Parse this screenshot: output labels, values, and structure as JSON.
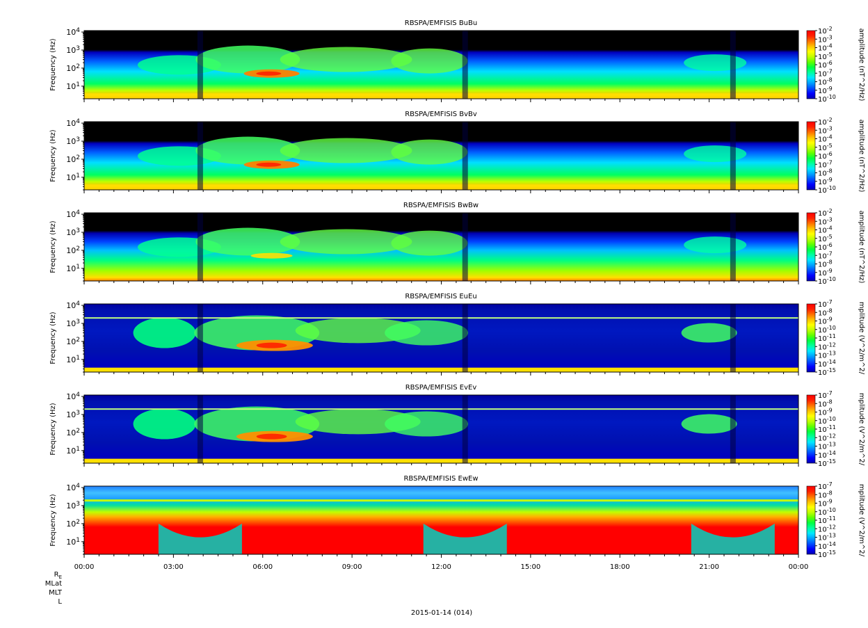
{
  "figure": {
    "date_label": "2015-01-14 (014)",
    "ephemeris_labels": [
      "R_E",
      "MLat",
      "MLT",
      "L"
    ],
    "x_ticks": [
      "00:00",
      "03:00",
      "06:00",
      "09:00",
      "12:00",
      "15:00",
      "18:00",
      "21:00",
      "00:00"
    ]
  },
  "colors": {
    "colorbar": [
      "#0000b0",
      "#0000ff",
      "#0050ff",
      "#00a0ff",
      "#00e8ff",
      "#00ffa0",
      "#00ff40",
      "#60ff00",
      "#c0ff00",
      "#ffff00",
      "#ffc000",
      "#ff7000",
      "#ff2000",
      "#ff0000"
    ],
    "background": "#000000"
  },
  "chart_data": [
    {
      "type": "heatmap",
      "title": "RBSPA/EMFISIS  BuBu",
      "ylabel": "Frequency (Hz)",
      "y_ticks": [
        "10^1",
        "10^2",
        "10^3",
        "10^4"
      ],
      "yscale": "log",
      "ylim": [
        2,
        12000
      ],
      "x_range": [
        "00:00",
        "00:00"
      ],
      "colorbar_label": "amplitude (nT^2/Hz)",
      "colorbar_ticks": [
        "10^-2",
        "10^-3",
        "10^-4",
        "10^-5",
        "10^-6",
        "10^-7",
        "10^-8",
        "10^-9",
        "10^-10"
      ],
      "profile": "B",
      "z_range_log10": [
        -10,
        -2
      ]
    },
    {
      "type": "heatmap",
      "title": "RBSPA/EMFISIS  BvBv",
      "ylabel": "Frequency (Hz)",
      "y_ticks": [
        "10^1",
        "10^2",
        "10^3",
        "10^4"
      ],
      "yscale": "log",
      "ylim": [
        2,
        12000
      ],
      "x_range": [
        "00:00",
        "00:00"
      ],
      "colorbar_label": "amplitude (nT^2/Hz)",
      "colorbar_ticks": [
        "10^-2",
        "10^-3",
        "10^-4",
        "10^-5",
        "10^-6",
        "10^-7",
        "10^-8",
        "10^-9",
        "10^-10"
      ],
      "profile": "B",
      "z_range_log10": [
        -10,
        -2
      ]
    },
    {
      "type": "heatmap",
      "title": "RBSPA/EMFISIS  BwBw",
      "ylabel": "Frequency (Hz)",
      "y_ticks": [
        "10^1",
        "10^2",
        "10^3",
        "10^4"
      ],
      "yscale": "log",
      "ylim": [
        2,
        12000
      ],
      "x_range": [
        "00:00",
        "00:00"
      ],
      "colorbar_label": "amplitude (nT^2/Hz)",
      "colorbar_ticks": [
        "10^-2",
        "10^-3",
        "10^-4",
        "10^-5",
        "10^-6",
        "10^-7",
        "10^-8",
        "10^-9",
        "10^-10"
      ],
      "profile": "Bw",
      "z_range_log10": [
        -10,
        -2
      ]
    },
    {
      "type": "heatmap",
      "title": "RBSPA/EMFISIS  EuEu",
      "ylabel": "Frequency (Hz)",
      "y_ticks": [
        "10^1",
        "10^2",
        "10^3",
        "10^4"
      ],
      "yscale": "log",
      "ylim": [
        2,
        12000
      ],
      "x_range": [
        "00:00",
        "00:00"
      ],
      "colorbar_label": "mplitude (V^2/m^2/",
      "colorbar_ticks": [
        "10^-7",
        "10^-8",
        "10^-9",
        "10^-10",
        "10^-11",
        "10^-12",
        "10^-13",
        "10^-14",
        "10^-15"
      ],
      "profile": "E",
      "z_range_log10": [
        -15,
        -7
      ]
    },
    {
      "type": "heatmap",
      "title": "RBSPA/EMFISIS  EvEv",
      "ylabel": "Frequency (Hz)",
      "y_ticks": [
        "10^1",
        "10^2",
        "10^3",
        "10^4"
      ],
      "yscale": "log",
      "ylim": [
        2,
        12000
      ],
      "x_range": [
        "00:00",
        "00:00"
      ],
      "colorbar_label": "mplitude (V^2/m^2/",
      "colorbar_ticks": [
        "10^-7",
        "10^-8",
        "10^-9",
        "10^-10",
        "10^-11",
        "10^-12",
        "10^-13",
        "10^-14",
        "10^-15"
      ],
      "profile": "E",
      "z_range_log10": [
        -15,
        -7
      ]
    },
    {
      "type": "heatmap",
      "title": "RBSPA/EMFISIS  EwEw",
      "ylabel": "Frequency (Hz)",
      "y_ticks": [
        "10^1",
        "10^2",
        "10^3",
        "10^4"
      ],
      "yscale": "log",
      "ylim": [
        2,
        12000
      ],
      "x_range": [
        "00:00",
        "00:00"
      ],
      "colorbar_label": "mplitude (V^2/m^2/",
      "colorbar_ticks": [
        "10^-7",
        "10^-8",
        "10^-9",
        "10^-10",
        "10^-11",
        "10^-12",
        "10^-13",
        "10^-14",
        "10^-15"
      ],
      "profile": "Ew",
      "z_range_log10": [
        -15,
        -7
      ]
    }
  ]
}
